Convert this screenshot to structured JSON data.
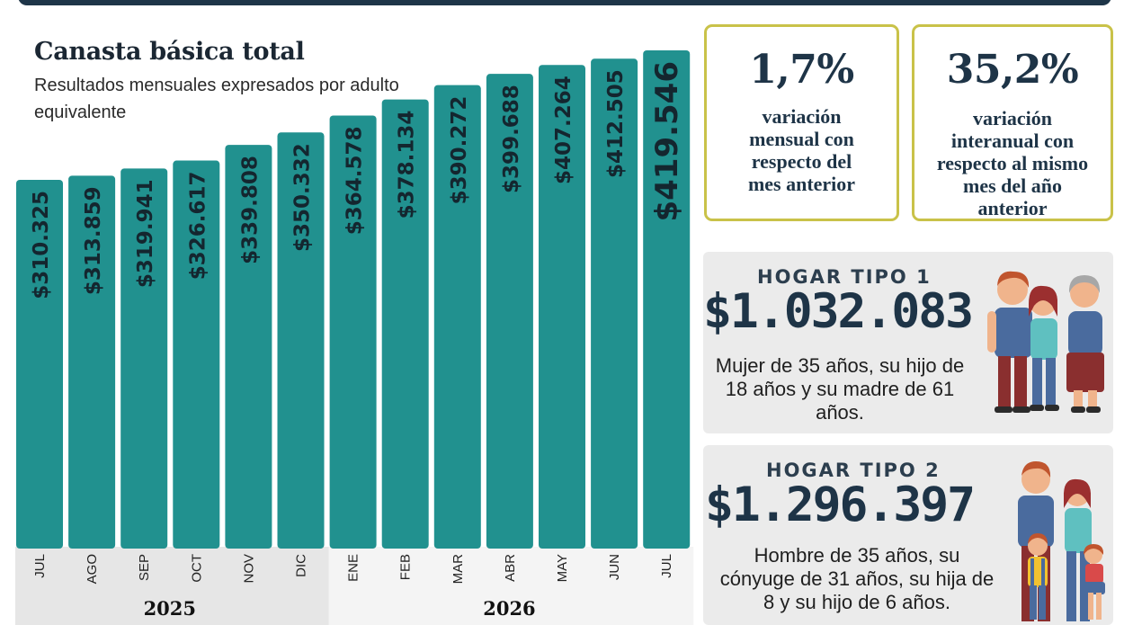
{
  "chart_data": {
    "type": "bar",
    "title": "Canasta básica total",
    "subtitle": "Resultados mensuales expresados por adulto equivalente",
    "categories": [
      "JUL",
      "AGO",
      "SEP",
      "OCT",
      "NOV",
      "DIC",
      "ENE",
      "FEB",
      "MAR",
      "ABR",
      "MAY",
      "JUN",
      "JUL"
    ],
    "values": [
      310325,
      313859,
      319941,
      326617,
      339808,
      350332,
      364578,
      378134,
      390272,
      399688,
      407264,
      412505,
      419546
    ],
    "value_labels": [
      "$310.325",
      "$313.859",
      "$319.941",
      "$326.617",
      "$339.808",
      "$350.332",
      "$364.578",
      "$378.134",
      "$390.272",
      "$399.688",
      "$407.264",
      "$412.505",
      "$419.546"
    ],
    "year_groups": [
      {
        "label": "2025",
        "count": 6
      },
      {
        "label": "2026",
        "count": 7
      }
    ],
    "grid": false,
    "legend": "none",
    "colors": {
      "bar": "#21918f",
      "year_band_2025": "#e6e6e6",
      "year_band_2026": "#f4f4f4",
      "value_text": "#14262f"
    }
  },
  "stats": [
    {
      "value": "1,7%",
      "description": "variación mensual con respecto del mes anterior"
    },
    {
      "value": "35,2%",
      "description": "variación interanual con respecto al mismo mes del año anterior"
    }
  ],
  "hogares": [
    {
      "heading": "HOGAR TIPO 1",
      "amount": "$1.032.083",
      "description": "Mujer de 35 años, su hijo de 18 años y su madre de 61 años.",
      "illustration_icon": "family-three-adults-icon"
    },
    {
      "heading": "HOGAR TIPO 2",
      "amount": "$1.296.397",
      "description": "Hombre de 35 años, su cónyuge de 31 años, su hija de 8 y su hijo de 6 años.",
      "illustration_icon": "family-parents-children-icon"
    }
  ],
  "colors": {
    "accent_border": "#c9c249",
    "navy": "#1e3447",
    "card_bg": "#ebebeb"
  }
}
